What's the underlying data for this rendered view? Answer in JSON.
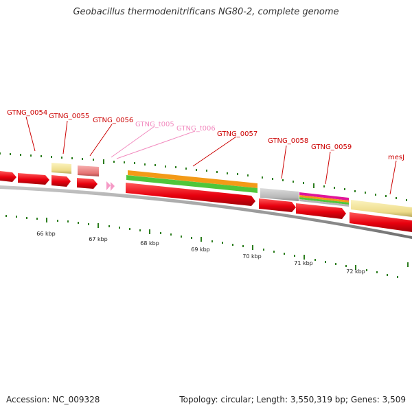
{
  "title": "Geobacillus thermodenitrificans NG80-2, complete genome",
  "accession_label": "Accession: NC_009328",
  "topology_label": "Topology: circular; Length: 3,550,319 bp; Genes: 3,509",
  "scale_labels": [
    "66 kbp",
    "67 kbp",
    "68 kbp",
    "69 kbp",
    "70 kbp",
    "71 kbp",
    "72 kbp"
  ],
  "gene_labels": [
    "GTNG_0054",
    "GTNG_0055",
    "GTNG_0056",
    "GTNG_t005",
    "GTNG_t006",
    "GTNG_0057",
    "GTNG_0058",
    "GTNG_0059",
    "mesJ"
  ],
  "colors": {
    "cds": "#e8000e",
    "trna": "#f59ac6",
    "gene_label": "#cc0000",
    "trna_label": "#f28bbf",
    "tick": "#2c7d1e",
    "backbone": "#8f8f8f",
    "pale_yellow": "#f1e49a",
    "pale_red": "#ea8080",
    "orange": "#f39a17",
    "green": "#4fc63a",
    "gray": "#bdbdbd",
    "magenta": "#e0169a"
  }
}
